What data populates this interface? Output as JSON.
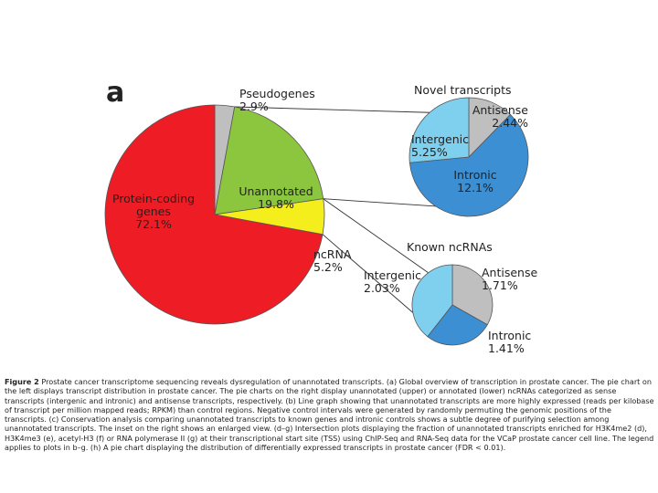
{
  "panel_letter": "a",
  "chart_data": [
    {
      "type": "pie",
      "role": "main",
      "slices": [
        {
          "label_lines": [
            "Pseudogenes",
            "2.9%"
          ],
          "value": 2.9,
          "color": "#bfbfbf"
        },
        {
          "label_lines": [
            "Unannotated",
            "19.8%"
          ],
          "value": 19.8,
          "color": "#8cc63f"
        },
        {
          "label_lines": [
            "ncRNA",
            "5.2%"
          ],
          "value": 5.2,
          "color": "#f4ee1c"
        },
        {
          "label_lines": [
            "Protein-coding",
            "genes",
            "72.1%"
          ],
          "value": 72.1,
          "color": "#ee1c24"
        }
      ]
    },
    {
      "type": "pie",
      "role": "inset-upper",
      "title": "Novel transcripts",
      "slices": [
        {
          "label_lines": [
            "Antisense",
            "2.44%"
          ],
          "value": 2.44,
          "color": "#bfbfbf"
        },
        {
          "label_lines": [
            "Intronic",
            "12.1%"
          ],
          "value": 12.1,
          "color": "#3c8fd2"
        },
        {
          "label_lines": [
            "Intergenic",
            "5.25%"
          ],
          "value": 5.25,
          "color": "#7fd0ee"
        }
      ]
    },
    {
      "type": "pie",
      "role": "inset-lower",
      "title": "Known ncRNAs",
      "slices": [
        {
          "label_lines": [
            "Antisense",
            "1.71%"
          ],
          "value": 1.71,
          "color": "#bfbfbf"
        },
        {
          "label_lines": [
            "Intronic",
            "1.41%"
          ],
          "value": 1.41,
          "color": "#3c8fd2"
        },
        {
          "label_lines": [
            "Intergenic",
            "2.03%"
          ],
          "value": 2.03,
          "color": "#7fd0ee"
        }
      ]
    }
  ],
  "caption": {
    "lead": "Figure 2",
    "body": "Prostate cancer transcriptome sequencing reveals dysregulation of unannotated transcripts. (a) Global overview of transcription in prostate cancer. The pie chart on the left displays transcript distribution in prostate cancer. The pie charts on the right display unannotated (upper) or annotated (lower) ncRNAs categorized as sense transcripts (intergenic and intronic) and antisense transcripts, respectively. (b) Line graph showing that unannotated transcripts are more highly expressed (reads per kilobase of transcript per million mapped reads; RPKM) than control regions. Negative control intervals were generated by randomly permuting the genomic positions of the transcripts. (c) Conservation analysis comparing unannotated transcripts to known genes and intronic controls shows a subtle degree of purifying selection among unannotated transcripts. The inset on the right shows an enlarged view. (d–g) Intersection plots displaying the fraction of unannotated transcripts enriched for H3K4me2 (d), H3K4me3 (e), acetyl-H3 (f) or RNA polymerase II (g) at their transcriptional start site (TSS) using ChIP-Seq and RNA-Seq data for the VCaP prostate cancer cell line. The legend applies to plots in b–g. (h) A pie chart displaying the distribution of differentially expressed transcripts in prostate cancer (FDR < 0.01)."
  }
}
